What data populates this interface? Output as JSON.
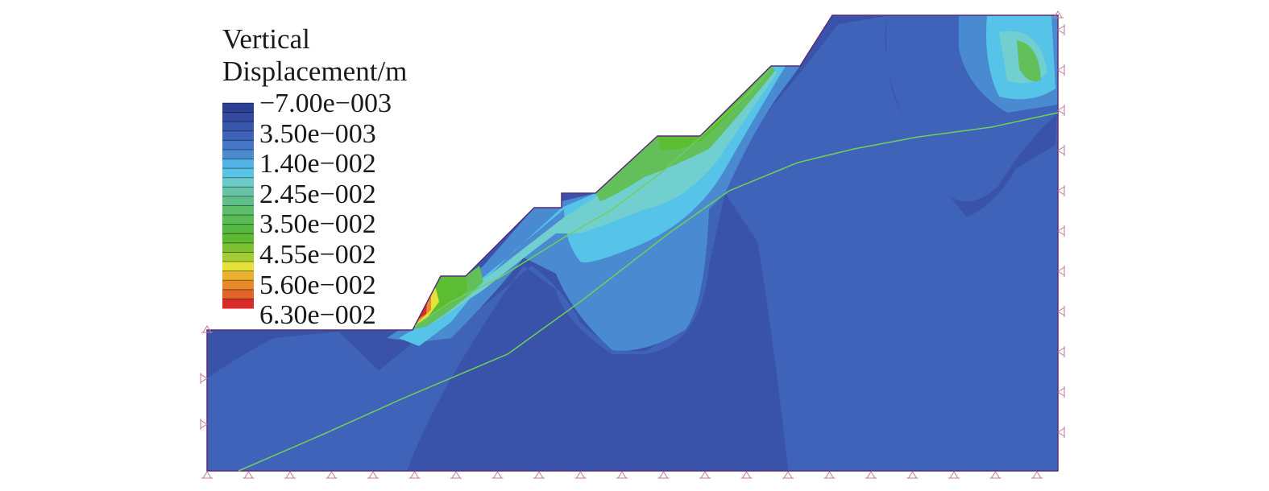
{
  "legend": {
    "title_line1": "Vertical",
    "title_line2": "Displacement/m",
    "labels": [
      "−7.00e−003",
      "3.50e−003",
      "1.40e−002",
      "2.45e−002",
      "3.50e−002",
      "4.55e−002",
      "5.60e−002",
      "6.30e−002"
    ],
    "colors": [
      "#2c3f93",
      "#334a9e",
      "#3a56ac",
      "#3f63b8",
      "#4677c6",
      "#4b8ad0",
      "#52b3e4",
      "#5ac4e4",
      "#6ccac8",
      "#66c3a6",
      "#5fbf8a",
      "#5cbd6a",
      "#58bc55",
      "#56b842",
      "#5dba32",
      "#7cc231",
      "#a4cc35",
      "#e4e23a",
      "#e8b22e",
      "#e88a2a",
      "#e26428",
      "#da2a2a"
    ]
  },
  "colors": {
    "base": "#3853a8",
    "band1": "#3f63b8",
    "band2": "#4a8ad0",
    "band3": "#56c3e8",
    "band4": "#72cfd0",
    "band5": "#62bf5a",
    "band6": "#5cbd32",
    "slip_line": "#6fcf5a",
    "support": "#c27a9a",
    "outline": "#5a2a7a"
  }
}
